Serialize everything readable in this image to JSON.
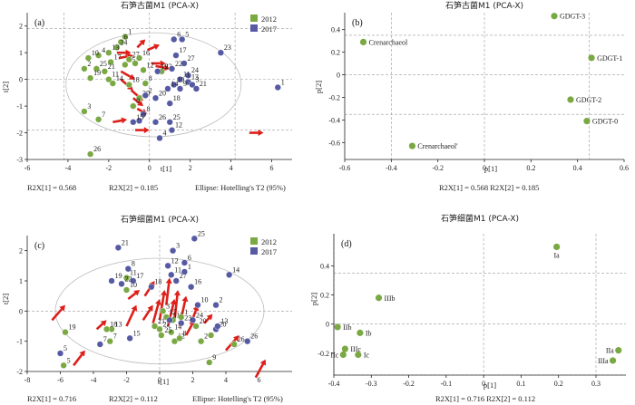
{
  "colors": {
    "g2012": "#7aa843",
    "g2017": "#555aa3",
    "arrow": "#dd1f1a",
    "ellipse": "#bdbdbd"
  },
  "chart_data": [
    {
      "panel": "(a)",
      "type": "scatter",
      "title": "石笋古菌M1 (PCA-X)",
      "xlabel": "t[1]",
      "ylabel": "t[2]",
      "xlim": [
        -6,
        7
      ],
      "ylim": [
        -3,
        2.5
      ],
      "xticks": [
        "-6",
        "-4",
        "-2",
        "0",
        "2",
        "4",
        "6"
      ],
      "yticks": [
        "-3",
        "-2",
        "-1",
        "0",
        "1",
        "2"
      ],
      "grid": "dashed lines at x=±4.2 and y=±1.9; x=0, y=0",
      "legend_position": "top-right",
      "legend": [
        "2012",
        "2017"
      ],
      "series": [
        {
          "name": "2012",
          "points": [
            {
              "x": -1.2,
              "y": 1.6,
              "label": "1"
            },
            {
              "x": -1.4,
              "y": 1.4,
              "label": "6"
            },
            {
              "x": -1.6,
              "y": 1.2,
              "label": "24"
            },
            {
              "x": -2.0,
              "y": 1.0,
              "label": "13"
            },
            {
              "x": -2.5,
              "y": 0.9,
              "label": "4"
            },
            {
              "x": -3.0,
              "y": 0.8,
              "label": "10"
            },
            {
              "x": -1.9,
              "y": 0.65,
              "label": "17"
            },
            {
              "x": -1.2,
              "y": 0.55,
              "label": "15"
            },
            {
              "x": -1.0,
              "y": 0.75,
              "label": "27"
            },
            {
              "x": -3.2,
              "y": 0.4,
              "label": "2"
            },
            {
              "x": -2.6,
              "y": 0.4,
              "label": "25"
            },
            {
              "x": -2.2,
              "y": 0.3,
              "label": "21"
            },
            {
              "x": -0.7,
              "y": 0.6,
              "label": "5"
            },
            {
              "x": -0.5,
              "y": 0.8,
              "label": "16"
            },
            {
              "x": -0.3,
              "y": 0.35,
              "label": "12"
            },
            {
              "x": -2.9,
              "y": 0.05,
              "label": "19"
            },
            {
              "x": -2.0,
              "y": 0.0,
              "label": "11"
            },
            {
              "x": -1.8,
              "y": -0.15,
              "label": "14"
            },
            {
              "x": -1.0,
              "y": -0.2,
              "label": "18"
            },
            {
              "x": -0.2,
              "y": -0.15,
              "label": "8"
            },
            {
              "x": 0.6,
              "y": 0.3,
              "label": "23"
            },
            {
              "x": -3.2,
              "y": -1.2,
              "label": "3"
            },
            {
              "x": -2.5,
              "y": -1.5,
              "label": "7"
            },
            {
              "x": -2.9,
              "y": -2.8,
              "label": "26"
            },
            {
              "x": -0.5,
              "y": -0.7,
              "label": "20"
            },
            {
              "x": -0.8,
              "y": -1.0,
              "label": "9"
            }
          ]
        },
        {
          "name": "2017",
          "points": [
            {
              "x": 1.2,
              "y": 1.5,
              "label": "6"
            },
            {
              "x": 1.6,
              "y": 1.5,
              "label": "5"
            },
            {
              "x": 3.5,
              "y": 1.0,
              "label": "23"
            },
            {
              "x": 1.3,
              "y": 0.9,
              "label": "17"
            },
            {
              "x": 1.7,
              "y": 0.6,
              "label": "27"
            },
            {
              "x": 1.1,
              "y": 0.4,
              "label": "22"
            },
            {
              "x": 0.4,
              "y": 0.3,
              "label": "19"
            },
            {
              "x": 1.9,
              "y": 0.15,
              "label": "24"
            },
            {
              "x": 1.5,
              "y": 0.0,
              "label": "11"
            },
            {
              "x": 1.9,
              "y": -0.1,
              "label": "13"
            },
            {
              "x": 2.1,
              "y": -0.2,
              "label": "3"
            },
            {
              "x": 2.3,
              "y": -0.35,
              "label": "21"
            },
            {
              "x": 6.3,
              "y": -0.3,
              "label": "1"
            },
            {
              "x": 1.2,
              "y": -0.2,
              "label": "10"
            },
            {
              "x": 0.9,
              "y": -0.35,
              "label": "14"
            },
            {
              "x": 1.5,
              "y": -0.35,
              "label": "9"
            },
            {
              "x": 0.3,
              "y": -0.7,
              "label": "20"
            },
            {
              "x": 1.0,
              "y": -0.9,
              "label": "18"
            },
            {
              "x": -0.2,
              "y": -0.6,
              "label": "2"
            },
            {
              "x": -0.3,
              "y": -1.3,
              "label": "8"
            },
            {
              "x": 0.3,
              "y": -1.6,
              "label": "26"
            },
            {
              "x": 1.0,
              "y": -1.6,
              "label": "25"
            },
            {
              "x": -0.5,
              "y": -1.55,
              "label": "7"
            },
            {
              "x": -0.8,
              "y": -1.6,
              "label": "15"
            },
            {
              "x": 1.1,
              "y": -1.9,
              "label": "12"
            },
            {
              "x": 0.5,
              "y": -2.2,
              "label": "4"
            }
          ]
        }
      ],
      "arrows": [
        [
          -0.6,
          1.2,
          -0.2,
          1.5
        ],
        [
          -0.1,
          1.1,
          0.5,
          1.3
        ],
        [
          -1.6,
          1.0,
          -0.9,
          1.0
        ],
        [
          -1.5,
          0.8,
          -0.8,
          0.9
        ],
        [
          0.1,
          0.6,
          0.8,
          0.6
        ],
        [
          0.3,
          0.5,
          1.0,
          0.4
        ],
        [
          -1.4,
          0.3,
          -0.7,
          0.0
        ],
        [
          -1.4,
          0.0,
          -0.8,
          -0.4
        ],
        [
          -0.9,
          -0.4,
          -0.3,
          -0.8
        ],
        [
          -0.8,
          -0.7,
          -0.3,
          -1.0
        ],
        [
          -0.6,
          -1.1,
          -0.1,
          -1.3
        ],
        [
          -1.8,
          -1.6,
          -1.1,
          -1.5
        ],
        [
          -0.7,
          -1.9,
          0.0,
          -1.9
        ],
        [
          4.9,
          -2.0,
          5.6,
          -2.0
        ]
      ],
      "stats": [
        "R2X[1] = 0.568",
        "R2X[2] = 0.185",
        "Ellipse: Hotelling's T2 (95%)"
      ]
    },
    {
      "panel": "(b)",
      "type": "scatter",
      "title": "石笋古菌M1 (PCA-X)",
      "xlabel": "p[1]",
      "ylabel": "p[2]",
      "xlim": [
        -0.6,
        0.6
      ],
      "ylim": [
        -0.75,
        0.55
      ],
      "xticks": [
        "-0.6",
        "-0.4",
        "-0.2",
        "0",
        "0.2",
        "0.4",
        "0.6"
      ],
      "yticks": [
        "-0.6",
        "-0.4",
        "-0.2",
        "0",
        "0.2",
        "0.4"
      ],
      "points": [
        {
          "x": 0.3,
          "y": 0.52,
          "label": "GDGT-3"
        },
        {
          "x": -0.52,
          "y": 0.29,
          "label": "Crenarchaeol"
        },
        {
          "x": 0.46,
          "y": 0.15,
          "label": "GDGT-1"
        },
        {
          "x": 0.37,
          "y": -0.22,
          "label": "GDGT-2"
        },
        {
          "x": 0.44,
          "y": -0.41,
          "label": "GDGT-0"
        },
        {
          "x": -0.31,
          "y": -0.63,
          "label": "Crenarchaeol'"
        }
      ],
      "stats": [
        "R2X[1] = 0.568 R2X[2] = 0.185"
      ]
    },
    {
      "panel": "(c)",
      "type": "scatter",
      "title": "石笋细菌M1 (PCA-X)",
      "xlabel": "t[1]",
      "ylabel": "t[2]",
      "xlim": [
        -8,
        8
      ],
      "ylim": [
        -2,
        2.5
      ],
      "xticks": [
        "-8",
        "-6",
        "-4",
        "-2",
        "0",
        "2",
        "4",
        "6"
      ],
      "yticks": [
        "-2",
        "-1",
        "0",
        "1",
        "2"
      ],
      "legend_position": "top-right",
      "legend": [
        "2012",
        "2017"
      ],
      "series": [
        {
          "name": "2012",
          "points": [
            {
              "x": -5.7,
              "y": -0.7,
              "label": "19"
            },
            {
              "x": -5.8,
              "y": -1.8,
              "label": "5"
            },
            {
              "x": -2.0,
              "y": 1.1,
              "label": "11"
            },
            {
              "x": -2.0,
              "y": 0.7,
              "label": "10"
            },
            {
              "x": -2.9,
              "y": -0.6,
              "label": "13"
            },
            {
              "x": -3.0,
              "y": -1.0,
              "label": "7"
            },
            {
              "x": -3.2,
              "y": -0.6,
              "label": "18"
            },
            {
              "x": -0.3,
              "y": -0.5,
              "label": "21"
            },
            {
              "x": 0.2,
              "y": 0.0,
              "label": "3"
            },
            {
              "x": 0.4,
              "y": -0.2,
              "label": "17"
            },
            {
              "x": 0.0,
              "y": -0.6,
              "label": "22"
            },
            {
              "x": 0.8,
              "y": -0.3,
              "label": "16"
            },
            {
              "x": 1.3,
              "y": -0.2,
              "label": "1"
            },
            {
              "x": 0.7,
              "y": -0.7,
              "label": "14"
            },
            {
              "x": 0.1,
              "y": -0.8,
              "label": "25"
            },
            {
              "x": 0.9,
              "y": -1.0,
              "label": "12"
            },
            {
              "x": 2.2,
              "y": -0.5,
              "label": "20"
            },
            {
              "x": 2.5,
              "y": -1.0,
              "label": "2"
            },
            {
              "x": 3.1,
              "y": -0.8,
              "label": "4"
            },
            {
              "x": 4.5,
              "y": -1.1,
              "label": "26"
            },
            {
              "x": 3.0,
              "y": -1.7,
              "label": "9"
            },
            {
              "x": 1.2,
              "y": -0.9,
              "label": "8"
            }
          ]
        },
        {
          "name": "2017",
          "points": [
            {
              "x": -6.0,
              "y": -1.4,
              "label": "5"
            },
            {
              "x": -2.5,
              "y": 2.1,
              "label": "21"
            },
            {
              "x": -1.9,
              "y": 1.4,
              "label": "8"
            },
            {
              "x": -2.9,
              "y": 1.0,
              "label": "19"
            },
            {
              "x": -1.6,
              "y": 1.0,
              "label": "17"
            },
            {
              "x": -2.3,
              "y": 0.9,
              "label": "22"
            },
            {
              "x": -1.8,
              "y": -0.9,
              "label": "15"
            },
            {
              "x": -3.6,
              "y": -1.1,
              "label": "7"
            },
            {
              "x": -0.5,
              "y": 0.8,
              "label": "18"
            },
            {
              "x": 0.8,
              "y": 2.0,
              "label": "3"
            },
            {
              "x": 0.5,
              "y": 1.5,
              "label": "12"
            },
            {
              "x": 1.5,
              "y": 1.6,
              "label": "6"
            },
            {
              "x": 0.7,
              "y": 1.2,
              "label": "11"
            },
            {
              "x": 1.0,
              "y": 1.0,
              "label": "27"
            },
            {
              "x": 1.5,
              "y": 1.3,
              "label": "1"
            },
            {
              "x": 1.9,
              "y": 0.8,
              "label": "16"
            },
            {
              "x": 2.3,
              "y": 0.2,
              "label": "10"
            },
            {
              "x": 2.0,
              "y": -0.3,
              "label": "24"
            },
            {
              "x": 3.4,
              "y": 0.2,
              "label": "2"
            },
            {
              "x": 3.4,
              "y": -0.6,
              "label": "20"
            },
            {
              "x": 3.5,
              "y": -0.5,
              "label": "13"
            },
            {
              "x": 2.1,
              "y": 2.4,
              "label": "25"
            },
            {
              "x": 4.2,
              "y": 1.2,
              "label": "14"
            },
            {
              "x": 5.3,
              "y": -1.0,
              "label": "26"
            },
            {
              "x": 1.3,
              "y": -0.4,
              "label": "23"
            },
            {
              "x": 0.6,
              "y": -0.3,
              "label": "9"
            }
          ]
        }
      ],
      "arrows": [
        [
          -6.5,
          -0.3,
          -5.7,
          0.2
        ],
        [
          -5.2,
          -1.8,
          -4.5,
          -1.3
        ],
        [
          -3.8,
          -0.6,
          -3.2,
          -0.3
        ],
        [
          -2.0,
          -0.5,
          -1.4,
          0.2
        ],
        [
          -1.0,
          -0.3,
          -0.4,
          0.2
        ],
        [
          -0.9,
          0.5,
          -0.3,
          1.0
        ],
        [
          -0.4,
          -0.4,
          0.0,
          0.4
        ],
        [
          0.0,
          -0.3,
          0.3,
          0.7
        ],
        [
          0.4,
          0.2,
          0.6,
          1.1
        ],
        [
          0.5,
          -0.5,
          0.9,
          0.4
        ],
        [
          0.9,
          -0.3,
          1.1,
          0.7
        ],
        [
          1.2,
          -0.5,
          1.6,
          0.5
        ],
        [
          1.9,
          -0.4,
          2.3,
          0.2
        ],
        [
          1.6,
          -0.8,
          2.1,
          -0.3
        ],
        [
          2.7,
          -0.4,
          3.2,
          -0.1
        ],
        [
          4.0,
          -1.3,
          4.8,
          -0.8
        ],
        [
          5.8,
          -2.2,
          6.4,
          -1.6
        ],
        [
          -1.9,
          0.4,
          -1.2,
          0.7
        ]
      ],
      "stats": [
        "R2X[1] = 0.716",
        "R2X[2] = 0.112",
        "Ellipse: Hotelling's T2 (95%)"
      ]
    },
    {
      "panel": "(d)",
      "type": "scatter",
      "title": "石笋细菌M1 (PCA-X)",
      "xlabel": "p[1]",
      "ylabel": "p[2]",
      "xlim": [
        -0.4,
        0.38
      ],
      "ylim": [
        -0.35,
        0.62
      ],
      "xticks": [
        "-0.4",
        "-0.3",
        "-0.2",
        "-0.1",
        "0",
        "0.1",
        "0.2",
        "0.3"
      ],
      "yticks": [
        "-0.2",
        "0",
        "0.2",
        "0.4"
      ],
      "points": [
        {
          "x": 0.195,
          "y": 0.53,
          "label": "Ia"
        },
        {
          "x": -0.28,
          "y": 0.18,
          "label": "IIIb"
        },
        {
          "x": -0.39,
          "y": -0.02,
          "label": "IIb"
        },
        {
          "x": -0.33,
          "y": -0.06,
          "label": "Ib"
        },
        {
          "x": -0.37,
          "y": -0.17,
          "label": "IIIc"
        },
        {
          "x": -0.375,
          "y": -0.21,
          "label": "IIc"
        },
        {
          "x": -0.335,
          "y": -0.21,
          "label": "Ic"
        },
        {
          "x": 0.36,
          "y": -0.18,
          "label": "IIa"
        },
        {
          "x": 0.345,
          "y": -0.25,
          "label": "IIIa"
        }
      ],
      "stats": [
        "R2X[1] = 0.716 R2X[2] = 0.112"
      ]
    }
  ]
}
